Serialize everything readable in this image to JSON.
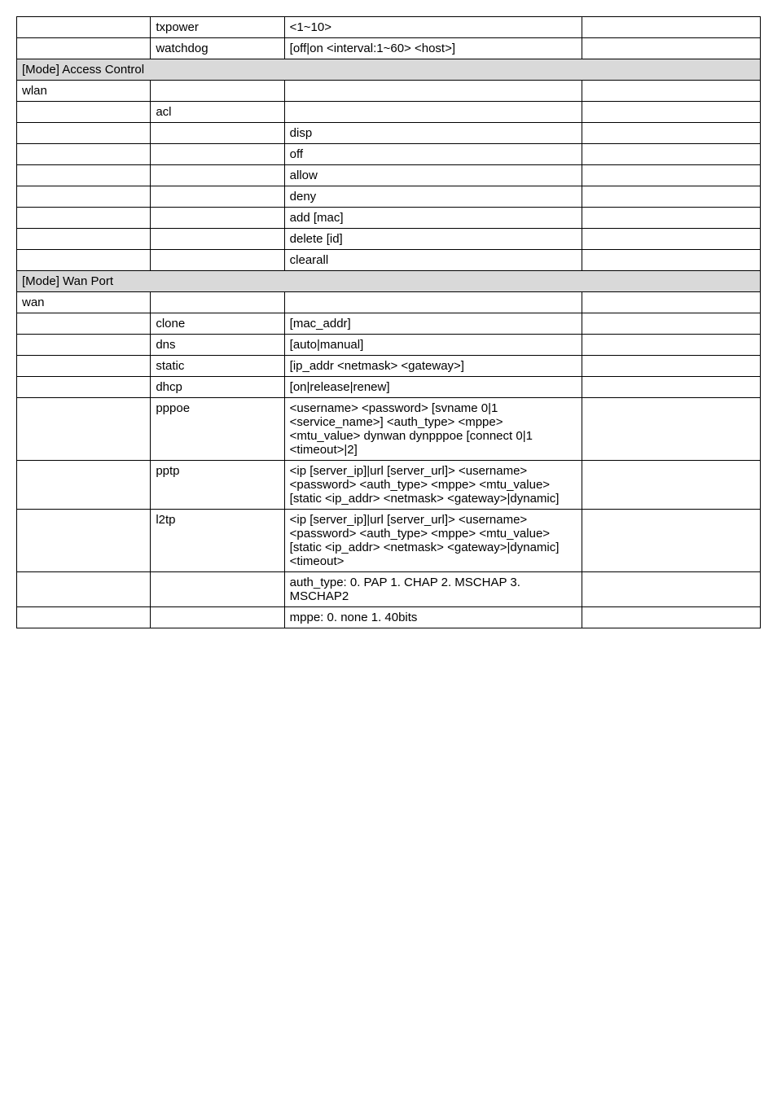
{
  "rows": [
    {
      "c1": "",
      "c2": "txpower",
      "c3": "<1~10>",
      "c4": ""
    },
    {
      "c1": "",
      "c2": "watchdog",
      "c3": "[off|on <interval:1~60> <host>]",
      "c4": ""
    },
    {
      "section": true,
      "text": "[Mode]    Access Control"
    },
    {
      "c1": "wlan",
      "c2": "",
      "c3": "",
      "c4": ""
    },
    {
      "c1": "",
      "c2": "acl",
      "c3": "",
      "c4": ""
    },
    {
      "c1": "",
      "c2": "",
      "c3": "disp",
      "c4": ""
    },
    {
      "c1": "",
      "c2": "",
      "c3": "off",
      "c4": ""
    },
    {
      "c1": "",
      "c2": "",
      "c3": "allow",
      "c4": ""
    },
    {
      "c1": "",
      "c2": "",
      "c3": "deny",
      "c4": ""
    },
    {
      "c1": "",
      "c2": "",
      "c3": "add [mac]",
      "c4": ""
    },
    {
      "c1": "",
      "c2": "",
      "c3": "delete [id]",
      "c4": ""
    },
    {
      "c1": "",
      "c2": "",
      "c3": "clearall",
      "c4": ""
    },
    {
      "section": true,
      "text": "[Mode]    Wan Port"
    },
    {
      "c1": "wan",
      "c2": "",
      "c3": "",
      "c4": ""
    },
    {
      "c1": "",
      "c2": "clone",
      "c3": "[mac_addr]",
      "c4": ""
    },
    {
      "c1": "",
      "c2": "dns",
      "c3": "[auto|manual]",
      "c4": ""
    },
    {
      "c1": "",
      "c2": "static",
      "c3": "[ip_addr <netmask> <gateway>]",
      "c4": ""
    },
    {
      "c1": "",
      "c2": "dhcp",
      "c3": "[on|release|renew]",
      "c4": ""
    },
    {
      "c1": "",
      "c2": "pppoe",
      "c3": "<username> <password> [svname 0|1 <service_name>] <auth_type> <mppe> <mtu_value> dynwan dynpppoe [connect 0|1 <timeout>|2]",
      "c4": ""
    },
    {
      "c1": "",
      "c2": "pptp",
      "c3": "<ip [server_ip]|url [server_url]> <username> <password> <auth_type> <mppe> <mtu_value> [static <ip_addr> <netmask> <gateway>|dynamic]",
      "c4": ""
    },
    {
      "c1": "",
      "c2": "l2tp",
      "c3": "<ip [server_ip]|url [server_url]> <username> <password> <auth_type> <mppe> <mtu_value> [static <ip_addr> <netmask> <gateway>|dynamic] <timeout>",
      "c4": ""
    },
    {
      "c1": "",
      "c2": "",
      "c3": "auth_type: 0. PAP 1. CHAP 2. MSCHAP 3. MSCHAP2",
      "c4": ""
    },
    {
      "c1": "",
      "c2": "",
      "c3": "mppe: 0. none 1. 40bits",
      "c4": ""
    }
  ]
}
